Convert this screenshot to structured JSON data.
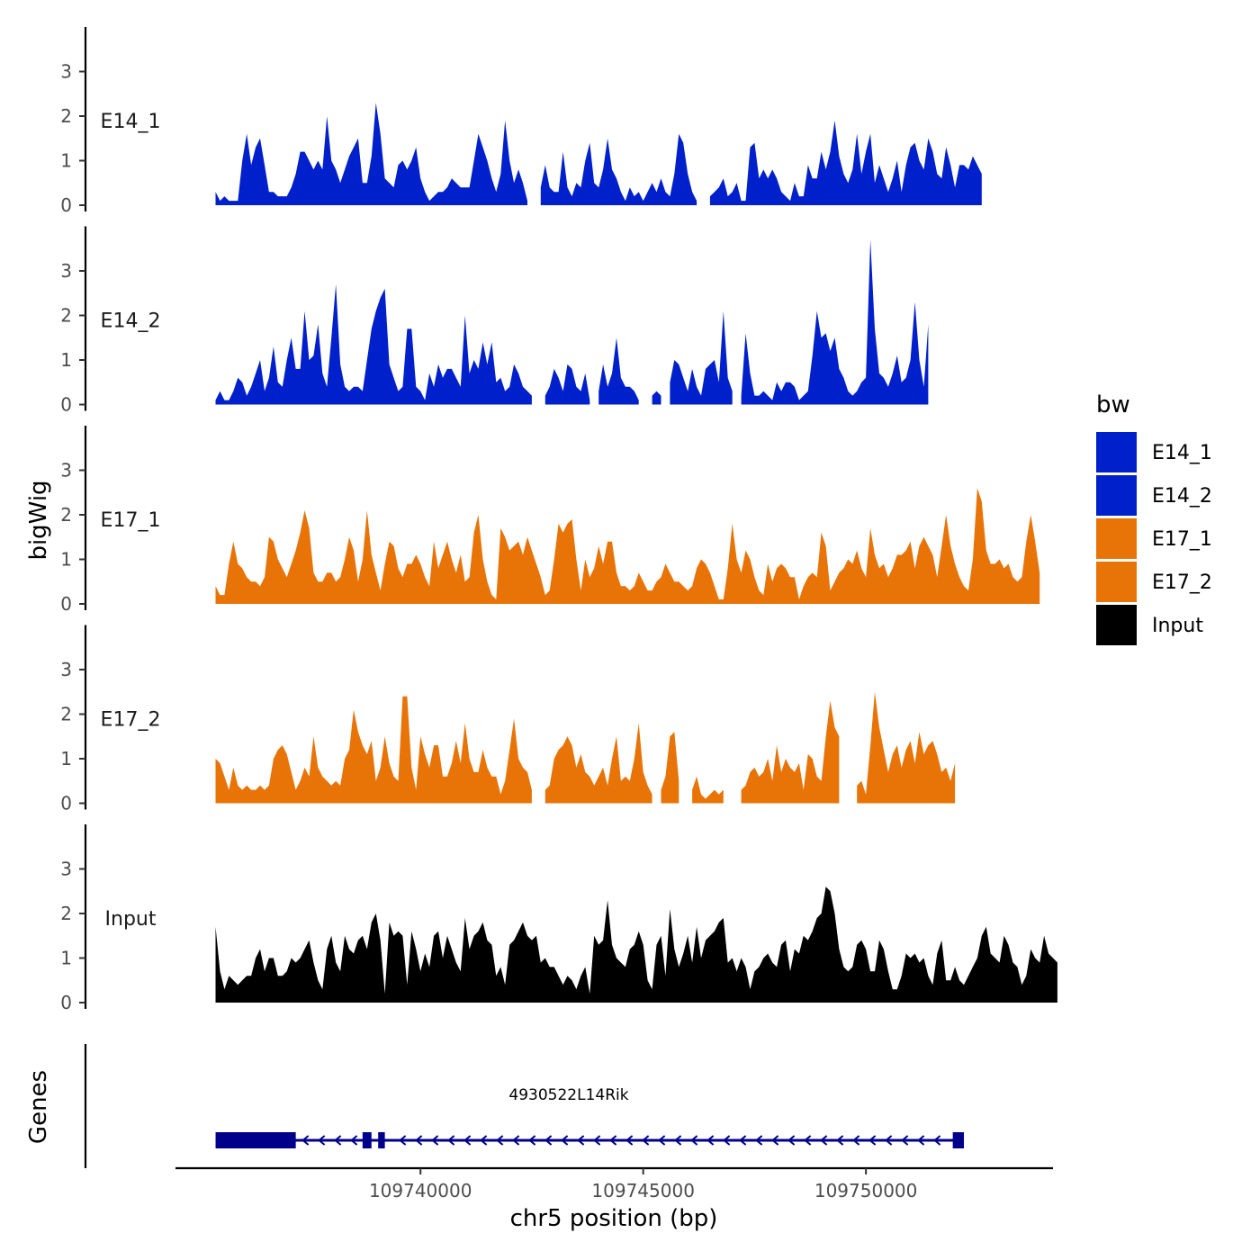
{
  "chart_data": {
    "type": "area",
    "title": "",
    "ylabel": "bigWig",
    "xlabel": "chr5 position (bp)",
    "genes_label": "Genes",
    "xlim": [
      109734500,
      109754200
    ],
    "ylim": [
      0,
      3.8
    ],
    "yticks": [
      "0",
      "1",
      "2",
      "3"
    ],
    "xticks": [
      {
        "value": 109740000,
        "label": "109740000"
      },
      {
        "value": 109745000,
        "label": "109745000"
      },
      {
        "value": 109750000,
        "label": "109750000"
      }
    ],
    "legend": {
      "title": "bw",
      "entries": [
        {
          "label": "E14_1",
          "color": "#0020CC"
        },
        {
          "label": "E14_2",
          "color": "#0020CC"
        },
        {
          "label": "E17_1",
          "color": "#E87408"
        },
        {
          "label": "E17_2",
          "color": "#E87408"
        },
        {
          "label": "Input",
          "color": "#000000"
        }
      ]
    },
    "x_start": 109735400,
    "x_step": 100,
    "series": [
      {
        "name": "E14_1",
        "color": "#0020CC",
        "values": [
          0.3,
          0.1,
          0.2,
          0.1,
          0.1,
          0.1,
          1.0,
          1.6,
          0.9,
          1.3,
          1.5,
          0.9,
          0.3,
          0.3,
          0.2,
          0.2,
          0.2,
          0.4,
          0.7,
          1.2,
          1.2,
          1.0,
          0.8,
          1.0,
          0.8,
          2.0,
          1.0,
          0.8,
          0.5,
          0.8,
          1.1,
          1.3,
          1.5,
          0.5,
          0.5,
          1.1,
          2.3,
          1.6,
          0.6,
          0.5,
          0.4,
          0.9,
          1.0,
          0.8,
          1.0,
          1.3,
          0.6,
          0.3,
          0.1,
          0.2,
          0.3,
          0.3,
          0.4,
          0.6,
          0.5,
          0.4,
          0.4,
          0.4,
          1.0,
          1.6,
          1.3,
          1.0,
          0.6,
          0.3,
          0.7,
          1.9,
          1.0,
          0.5,
          0.8,
          0.5,
          0.1,
          null,
          null,
          0.4,
          0.9,
          0.4,
          0.3,
          0.3,
          1.2,
          0.4,
          0.2,
          0.5,
          0.4,
          1.0,
          1.4,
          0.5,
          0.4,
          0.8,
          1.5,
          0.8,
          0.6,
          0.3,
          0.1,
          0.4,
          0.2,
          0.3,
          0.1,
          0.3,
          0.5,
          0.3,
          0.6,
          0.3,
          0.2,
          0.7,
          1.6,
          1.4,
          0.7,
          0.3,
          0.1,
          null,
          null,
          0.2,
          0.3,
          0.4,
          0.6,
          0.2,
          0.3,
          0.5,
          0.1,
          0.1,
          1.3,
          1.4,
          0.6,
          0.8,
          0.6,
          0.8,
          0.6,
          0.3,
          0.2,
          0.1,
          0.5,
          0.2,
          0.2,
          0.9,
          0.6,
          0.6,
          1.2,
          0.8,
          1.2,
          1.9,
          1.1,
          0.7,
          0.5,
          0.8,
          1.6,
          0.7,
          1.2,
          1.6,
          0.5,
          0.9,
          0.6,
          0.3,
          0.6,
          1.0,
          0.3,
          0.9,
          1.3,
          1.4,
          1.0,
          0.8,
          1.5,
          1.2,
          0.7,
          0.6,
          1.3,
          0.9,
          0.4,
          0.9,
          0.9,
          0.8,
          1.1,
          0.9,
          0.7
        ]
      },
      {
        "name": "E14_2",
        "color": "#0020CC",
        "values": [
          0.1,
          0.3,
          0.1,
          0.1,
          0.3,
          0.6,
          0.5,
          0.2,
          0.4,
          0.7,
          1.0,
          0.3,
          0.6,
          1.3,
          0.5,
          0.4,
          1.0,
          1.5,
          0.8,
          0.8,
          2.1,
          1.0,
          1.1,
          1.8,
          0.7,
          0.4,
          1.5,
          2.7,
          0.9,
          0.4,
          0.3,
          0.4,
          0.4,
          0.3,
          1.0,
          1.7,
          2.1,
          2.4,
          2.6,
          0.9,
          0.6,
          0.3,
          0.4,
          1.7,
          1.7,
          0.4,
          0.3,
          0.1,
          0.7,
          0.4,
          0.9,
          0.6,
          0.8,
          0.8,
          0.6,
          0.4,
          2.0,
          0.7,
          1.0,
          0.8,
          1.4,
          0.9,
          1.4,
          0.5,
          0.6,
          0.3,
          0.4,
          0.9,
          0.7,
          0.4,
          0.3,
          0.2,
          null,
          null,
          0.2,
          0.4,
          0.8,
          0.6,
          0.3,
          0.9,
          0.8,
          0.4,
          0.3,
          0.7,
          0.1,
          null,
          0.3,
          0.9,
          0.4,
          0.7,
          1.5,
          0.6,
          0.4,
          0.4,
          0.3,
          0.1,
          null,
          null,
          0.2,
          0.3,
          0.2,
          null,
          0.5,
          1.0,
          0.9,
          0.6,
          0.3,
          0.8,
          0.4,
          0.2,
          0.8,
          0.9,
          1.0,
          0.5,
          2.1,
          0.6,
          0.3,
          null,
          0.2,
          1.6,
          0.7,
          0.2,
          0.2,
          0.3,
          0.2,
          0.1,
          0.5,
          0.3,
          0.5,
          0.5,
          0.4,
          0.1,
          0.2,
          0.3,
          1.1,
          2.1,
          1.5,
          1.6,
          1.2,
          1.5,
          0.8,
          0.6,
          0.3,
          0.2,
          0.3,
          0.5,
          0.6,
          3.7,
          1.7,
          0.7,
          0.6,
          0.4,
          0.7,
          1.1,
          0.5,
          0.6,
          1.0,
          2.3,
          1.0,
          0.4,
          1.8
        ]
      },
      {
        "name": "E17_1",
        "color": "#E87408",
        "values": [
          0.4,
          0.2,
          0.2,
          0.9,
          1.4,
          0.9,
          0.8,
          0.6,
          0.5,
          0.5,
          0.4,
          0.6,
          1.5,
          1.4,
          1.0,
          0.8,
          0.6,
          0.9,
          1.2,
          1.6,
          2.1,
          1.7,
          0.7,
          0.5,
          0.5,
          0.7,
          0.7,
          0.5,
          0.6,
          1.0,
          1.5,
          1.2,
          0.5,
          1.0,
          2.1,
          1.1,
          0.7,
          0.3,
          0.9,
          1.4,
          1.3,
          0.8,
          0.6,
          0.9,
          0.9,
          1.1,
          0.9,
          0.6,
          0.4,
          1.4,
          0.8,
          1.1,
          1.4,
          1.0,
          0.7,
          1.1,
          0.5,
          0.6,
          1.6,
          2.0,
          1.0,
          0.5,
          0.2,
          0.1,
          1.7,
          1.5,
          1.2,
          1.3,
          1.4,
          1.1,
          1.5,
          1.2,
          0.9,
          0.6,
          0.2,
          0.3,
          1.0,
          1.8,
          1.6,
          1.8,
          1.9,
          1.0,
          0.3,
          1.0,
          0.6,
          0.8,
          1.3,
          0.9,
          1.4,
          1.4,
          0.7,
          0.4,
          0.4,
          0.3,
          0.4,
          0.7,
          0.5,
          0.3,
          0.3,
          0.5,
          0.6,
          0.9,
          0.7,
          0.5,
          0.5,
          0.4,
          0.3,
          0.4,
          0.8,
          1.0,
          0.9,
          0.7,
          0.4,
          0.1,
          0.1,
          0.8,
          1.8,
          1.0,
          0.7,
          1.2,
          1.0,
          0.6,
          0.3,
          0.2,
          0.9,
          0.5,
          0.8,
          0.9,
          0.8,
          0.6,
          0.6,
          0.1,
          0.4,
          0.6,
          0.7,
          0.6,
          1.6,
          1.3,
          0.3,
          0.5,
          0.7,
          0.8,
          1.0,
          0.9,
          1.2,
          0.8,
          0.6,
          1.7,
          1.1,
          0.8,
          0.9,
          0.6,
          0.8,
          1.1,
          1.1,
          1.2,
          1.4,
          0.8,
          1.3,
          1.5,
          1.3,
          1.1,
          0.6,
          1.3,
          2.0,
          1.3,
          0.9,
          0.6,
          0.4,
          0.3,
          1.0,
          2.6,
          2.3,
          1.2,
          0.9,
          0.9,
          1.0,
          0.8,
          0.9,
          0.6,
          0.5,
          0.6,
          1.4,
          2.0,
          1.4,
          0.7
        ]
      },
      {
        "name": "E17_2",
        "color": "#E87408",
        "values": [
          1.0,
          0.9,
          0.6,
          0.3,
          0.8,
          0.4,
          0.3,
          0.4,
          0.3,
          0.3,
          0.4,
          0.3,
          0.4,
          1.0,
          1.2,
          1.3,
          1.1,
          0.7,
          0.3,
          0.5,
          0.8,
          0.6,
          1.5,
          0.8,
          0.6,
          0.5,
          0.4,
          0.5,
          0.4,
          1.0,
          1.2,
          2.1,
          1.6,
          1.3,
          1.1,
          1.4,
          0.5,
          0.8,
          1.5,
          0.9,
          0.6,
          0.5,
          2.4,
          2.4,
          0.8,
          0.3,
          1.5,
          1.1,
          0.8,
          1.3,
          1.3,
          0.6,
          0.6,
          0.9,
          1.4,
          0.9,
          1.8,
          1.0,
          0.7,
          0.7,
          1.2,
          0.8,
          0.6,
          0.6,
          0.2,
          0.5,
          1.2,
          1.9,
          1.0,
          0.8,
          0.7,
          0.3,
          null,
          null,
          0.3,
          0.4,
          1.0,
          1.2,
          1.3,
          1.5,
          1.3,
          0.8,
          1.1,
          0.7,
          0.6,
          0.4,
          0.6,
          0.8,
          0.4,
          1.0,
          1.5,
          0.5,
          0.6,
          0.5,
          1.0,
          1.8,
          0.7,
          0.4,
          0.2,
          null,
          0.3,
          0.6,
          1.5,
          1.6,
          0.5,
          null,
          null,
          0.3,
          0.6,
          0.2,
          0.1,
          0.2,
          0.3,
          0.2,
          0.3,
          null,
          0.3,
          null,
          0.3,
          0.4,
          0.7,
          0.8,
          0.6,
          0.7,
          1.0,
          0.5,
          1.3,
          0.7,
          1.0,
          0.8,
          0.7,
          0.9,
          0.3,
          1.1,
          1.0,
          0.6,
          0.5,
          1.5,
          2.3,
          1.7,
          1.5,
          null,
          null,
          null,
          0.4,
          0.5,
          0.2,
          1.3,
          2.5,
          1.7,
          1.2,
          0.7,
          1.1,
          1.3,
          0.8,
          1.2,
          1.4,
          0.9,
          1.6,
          1.1,
          1.3,
          1.4,
          1.1,
          0.7,
          0.8,
          0.5,
          0.9,
          null,
          0.2
        ]
      },
      {
        "name": "Input",
        "color": "#000000",
        "values": [
          1.7,
          0.7,
          0.3,
          0.6,
          0.5,
          0.4,
          0.5,
          0.6,
          0.6,
          1.0,
          1.2,
          0.7,
          1.0,
          1.0,
          0.6,
          0.6,
          0.7,
          1.0,
          0.9,
          1.0,
          1.2,
          1.4,
          0.9,
          0.5,
          0.3,
          1.2,
          1.5,
          0.9,
          0.7,
          1.5,
          1.2,
          1.1,
          1.4,
          1.5,
          1.2,
          1.8,
          2.0,
          1.4,
          0.2,
          1.8,
          1.5,
          1.6,
          1.5,
          0.4,
          1.6,
          1.2,
          0.7,
          1.1,
          0.8,
          1.5,
          1.6,
          1.0,
          1.5,
          1.2,
          0.9,
          0.7,
          1.9,
          1.2,
          1.5,
          1.6,
          1.8,
          1.4,
          1.3,
          0.6,
          0.8,
          0.4,
          1.3,
          1.4,
          1.6,
          1.8,
          1.5,
          1.4,
          1.5,
          0.9,
          1.0,
          0.8,
          0.8,
          0.6,
          0.4,
          0.6,
          0.5,
          0.3,
          0.6,
          0.8,
          0.2,
          1.5,
          1.3,
          1.4,
          2.3,
          1.3,
          1.0,
          0.9,
          0.8,
          1.2,
          1.3,
          1.6,
          1.3,
          0.5,
          0.3,
          1.3,
          1.5,
          0.6,
          2.1,
          1.2,
          0.8,
          1.1,
          1.5,
          0.9,
          1.7,
          1.0,
          1.4,
          1.5,
          1.6,
          1.8,
          1.9,
          0.9,
          1.0,
          0.7,
          1.0,
          0.8,
          0.3,
          0.7,
          0.8,
          1.0,
          1.1,
          0.9,
          0.8,
          1.3,
          1.4,
          0.7,
          1.2,
          1.1,
          1.5,
          1.4,
          1.6,
          1.9,
          2.0,
          2.6,
          2.5,
          2.0,
          1.2,
          0.8,
          0.7,
          0.8,
          1.3,
          1.4,
          1.2,
          0.7,
          0.7,
          1.4,
          1.2,
          0.7,
          0.3,
          0.3,
          0.6,
          1.1,
          1.0,
          1.1,
          0.9,
          1.0,
          0.6,
          0.4,
          1.1,
          1.4,
          0.5,
          0.5,
          0.8,
          0.5,
          0.4,
          0.6,
          0.8,
          1.0,
          1.5,
          1.7,
          1.1,
          1.0,
          0.9,
          1.5,
          1.3,
          0.9,
          0.8,
          0.4,
          0.6,
          1.2,
          1.0,
          0.9,
          1.5,
          1.1,
          1.0,
          0.9
        ]
      }
    ],
    "gene": {
      "name": "4930522L14Rik",
      "color": "#00008B",
      "start": 109735400,
      "end": 109752200,
      "strand": "-",
      "exons": [
        [
          109735400,
          109737200
        ],
        [
          109738700,
          109738900
        ],
        [
          109739050,
          109739200
        ],
        [
          109751950,
          109752200
        ]
      ]
    }
  }
}
